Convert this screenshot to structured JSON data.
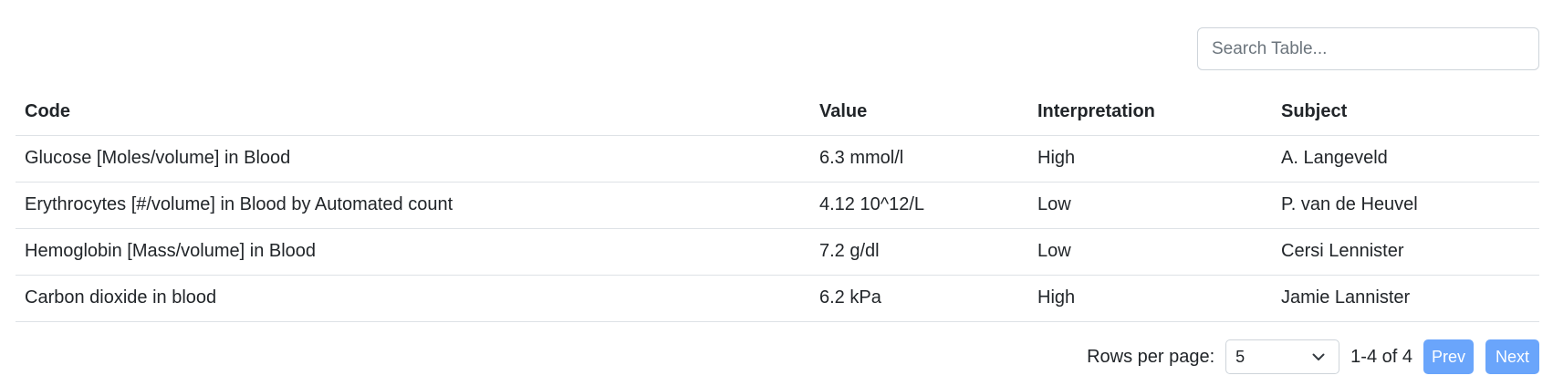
{
  "search": {
    "placeholder": "Search Table..."
  },
  "table": {
    "headers": [
      "Code",
      "Value",
      "Interpretation",
      "Subject"
    ],
    "rows": [
      [
        "Glucose [Moles/volume] in Blood",
        "6.3 mmol/l",
        "High",
        "A. Langeveld"
      ],
      [
        "Erythrocytes [#/volume] in Blood by Automated count",
        "4.12 10^12/L",
        "Low",
        "P. van de Heuvel"
      ],
      [
        "Hemoglobin [Mass/volume] in Blood",
        "7.2 g/dl",
        "Low",
        "Cersi Lennister"
      ],
      [
        "Carbon dioxide in blood",
        "6.2 kPa",
        "High",
        "Jamie Lannister"
      ]
    ]
  },
  "pagination": {
    "rows_per_page_label": "Rows per page:",
    "rows_per_page_value": "5",
    "range": "1-4 of 4",
    "prev_label": "Prev",
    "next_label": "Next"
  },
  "colors": {
    "button_bg": "#6aa5fb",
    "border": "#dee2e6",
    "text": "#212529"
  },
  "icons": {
    "select_arrow": "chevron-down-icon"
  }
}
